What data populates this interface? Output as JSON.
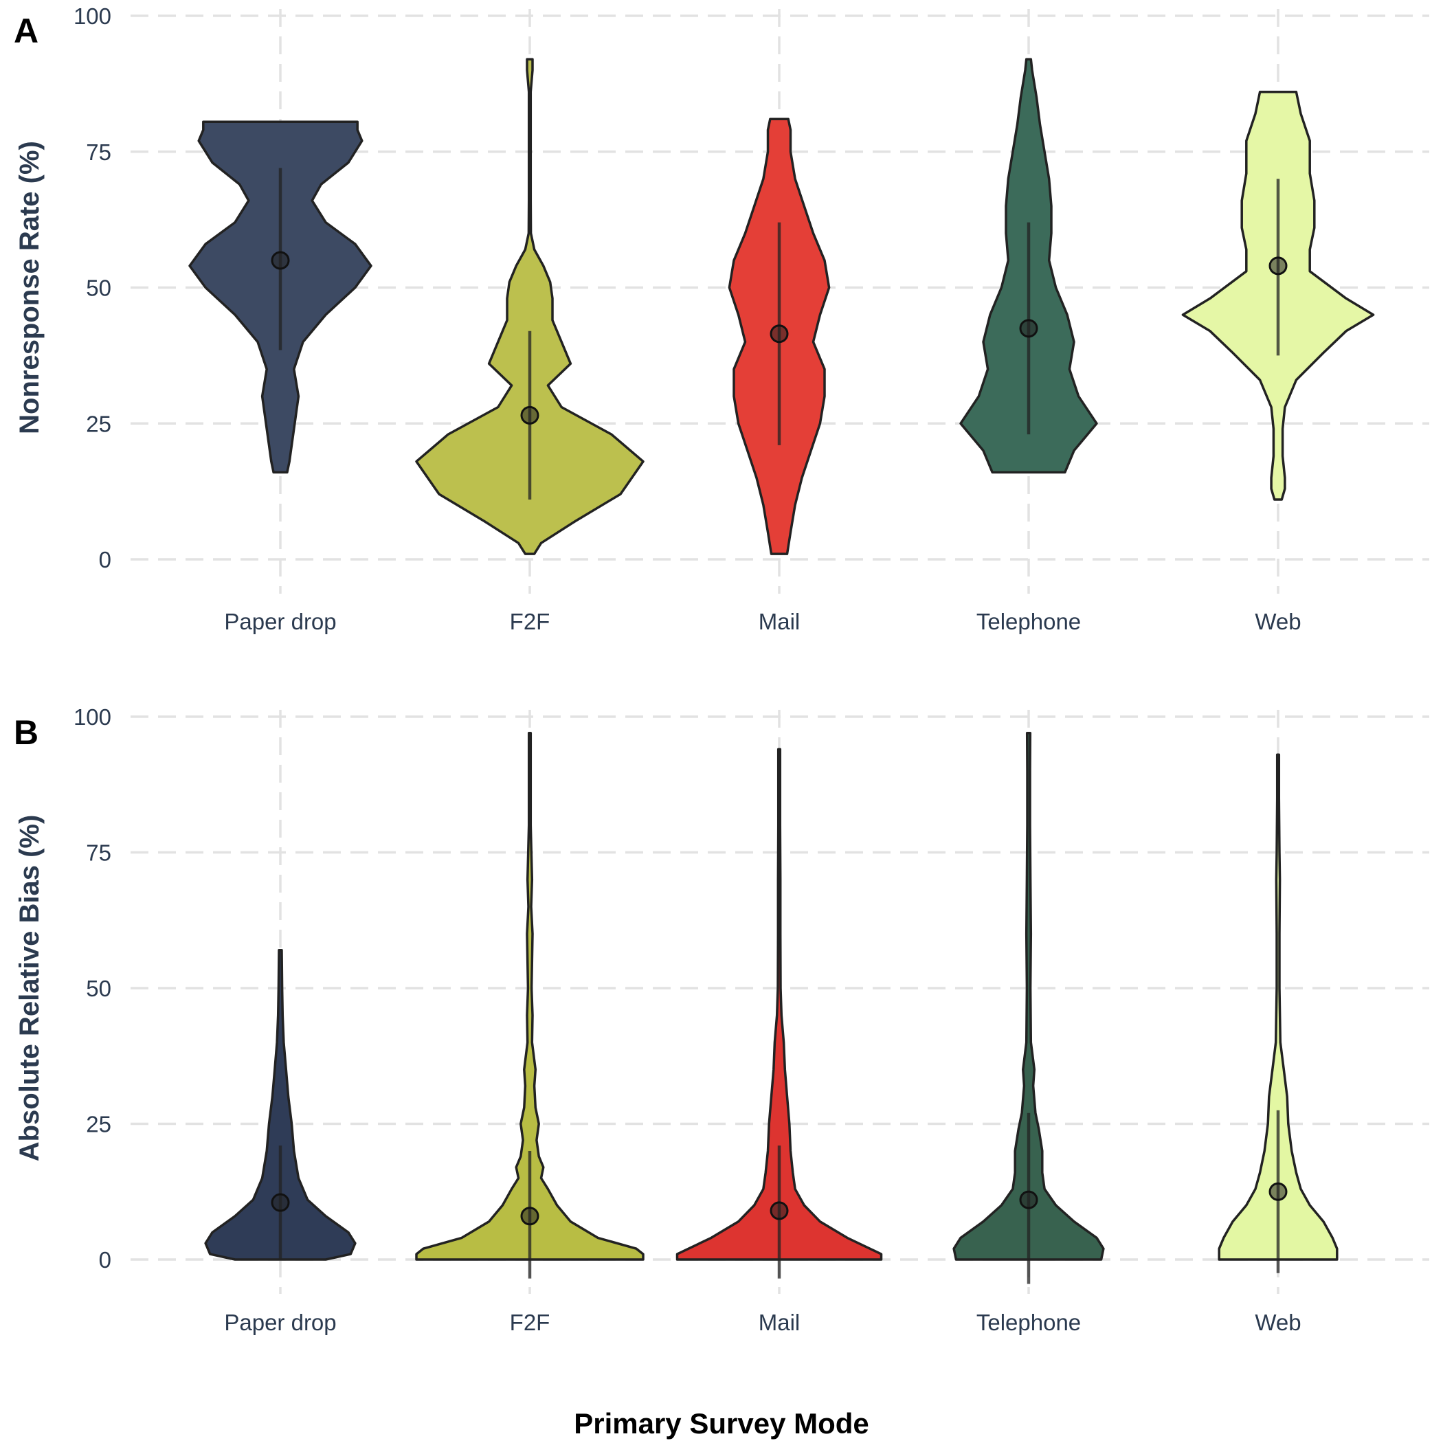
{
  "chart_data": [
    {
      "panel": "A",
      "type": "violin",
      "ylabel": "Nonresponse Rate (%)",
      "xlabel": "",
      "ylim": [
        0,
        100
      ],
      "yticks": [
        0,
        25,
        50,
        75,
        100
      ],
      "grid": true,
      "categories": [
        "Paper drop",
        "F2F",
        "Mail",
        "Telephone",
        "Web"
      ],
      "colors": [
        "#3d4a63",
        "#bcc04e",
        "#e43f37",
        "#3c6b5a",
        "#e5f7a6"
      ],
      "medians": [
        55,
        26.5,
        41.5,
        42.5,
        54
      ],
      "whiskers": [
        [
          38.5,
          72
        ],
        [
          11,
          42
        ],
        [
          21,
          62
        ],
        [
          23,
          62
        ],
        [
          37.5,
          70
        ]
      ],
      "density": [
        [
          [
            16,
            0.03
          ],
          [
            18,
            0.04
          ],
          [
            24,
            0.06
          ],
          [
            30,
            0.08
          ],
          [
            35,
            0.06
          ],
          [
            40,
            0.1
          ],
          [
            45,
            0.2
          ],
          [
            50,
            0.33
          ],
          [
            54,
            0.4
          ],
          [
            58,
            0.33
          ],
          [
            62,
            0.2
          ],
          [
            66,
            0.14
          ],
          [
            69,
            0.18
          ],
          [
            73,
            0.3
          ],
          [
            77,
            0.36
          ],
          [
            79,
            0.34
          ],
          [
            80.5,
            0.34
          ]
        ],
        [
          [
            1,
            0.02
          ],
          [
            3,
            0.05
          ],
          [
            7,
            0.2
          ],
          [
            12,
            0.4
          ],
          [
            18,
            0.5
          ],
          [
            23,
            0.36
          ],
          [
            28,
            0.14
          ],
          [
            32,
            0.08
          ],
          [
            36,
            0.18
          ],
          [
            40,
            0.14
          ],
          [
            44,
            0.1
          ],
          [
            48,
            0.1
          ],
          [
            51,
            0.09
          ],
          [
            54,
            0.06
          ],
          [
            57,
            0.02
          ],
          [
            60,
            0.005
          ],
          [
            66,
            0.004
          ],
          [
            78,
            0.004
          ],
          [
            86,
            0.004
          ],
          [
            90,
            0.012
          ],
          [
            92,
            0.012
          ]
        ],
        [
          [
            1,
            0.035
          ],
          [
            5,
            0.05
          ],
          [
            10,
            0.07
          ],
          [
            15,
            0.1
          ],
          [
            20,
            0.14
          ],
          [
            25,
            0.18
          ],
          [
            30,
            0.2
          ],
          [
            35,
            0.2
          ],
          [
            40,
            0.15
          ],
          [
            45,
            0.18
          ],
          [
            50,
            0.22
          ],
          [
            55,
            0.2
          ],
          [
            60,
            0.15
          ],
          [
            65,
            0.11
          ],
          [
            70,
            0.07
          ],
          [
            75,
            0.05
          ],
          [
            79,
            0.05
          ],
          [
            81,
            0.04
          ]
        ],
        [
          [
            16,
            0.16
          ],
          [
            20,
            0.2
          ],
          [
            25,
            0.3
          ],
          [
            30,
            0.22
          ],
          [
            35,
            0.18
          ],
          [
            40,
            0.2
          ],
          [
            45,
            0.17
          ],
          [
            50,
            0.12
          ],
          [
            55,
            0.09
          ],
          [
            60,
            0.1
          ],
          [
            65,
            0.1
          ],
          [
            70,
            0.09
          ],
          [
            75,
            0.07
          ],
          [
            80,
            0.05
          ],
          [
            85,
            0.035
          ],
          [
            90,
            0.015
          ],
          [
            92,
            0.01
          ]
        ],
        [
          [
            11,
            0.016
          ],
          [
            13,
            0.03
          ],
          [
            15,
            0.03
          ],
          [
            19,
            0.02
          ],
          [
            24,
            0.02
          ],
          [
            28,
            0.03
          ],
          [
            33,
            0.08
          ],
          [
            38,
            0.2
          ],
          [
            42,
            0.3
          ],
          [
            45,
            0.42
          ],
          [
            48,
            0.3
          ],
          [
            53,
            0.14
          ],
          [
            57,
            0.14
          ],
          [
            61,
            0.16
          ],
          [
            66,
            0.16
          ],
          [
            71,
            0.14
          ],
          [
            77,
            0.14
          ],
          [
            82,
            0.1
          ],
          [
            86,
            0.08
          ]
        ]
      ]
    },
    {
      "panel": "B",
      "type": "violin",
      "ylabel": "Absolute Relative Bias (%)",
      "xlabel": "Primary Survey Mode",
      "ylim": [
        0,
        100
      ],
      "yticks": [
        0,
        25,
        50,
        75,
        100
      ],
      "grid": true,
      "categories": [
        "Paper drop",
        "F2F",
        "Mail",
        "Telephone",
        "Web"
      ],
      "colors": [
        "#2f3c57",
        "#b8bd44",
        "#dd3430",
        "#38624f",
        "#e3f7a3"
      ],
      "medians": [
        10.5,
        8,
        9,
        11,
        12.5
      ],
      "whiskers": [
        [
          0,
          21
        ],
        [
          -3.5,
          20
        ],
        [
          -3.5,
          21
        ],
        [
          -4.5,
          27
        ],
        [
          -2.5,
          27.5
        ]
      ],
      "density": [
        [
          [
            0,
            0.2
          ],
          [
            1,
            0.31
          ],
          [
            3,
            0.33
          ],
          [
            5,
            0.3
          ],
          [
            8,
            0.2
          ],
          [
            11,
            0.12
          ],
          [
            15,
            0.08
          ],
          [
            20,
            0.06
          ],
          [
            25,
            0.05
          ],
          [
            30,
            0.035
          ],
          [
            35,
            0.025
          ],
          [
            40,
            0.015
          ],
          [
            45,
            0.01
          ],
          [
            50,
            0.008
          ],
          [
            57,
            0.006
          ]
        ],
        [
          [
            0,
            0.5
          ],
          [
            1,
            0.5
          ],
          [
            2,
            0.47
          ],
          [
            4,
            0.3
          ],
          [
            7,
            0.18
          ],
          [
            10,
            0.12
          ],
          [
            13,
            0.08
          ],
          [
            15,
            0.05
          ],
          [
            17,
            0.06
          ],
          [
            19,
            0.04
          ],
          [
            22,
            0.03
          ],
          [
            25,
            0.04
          ],
          [
            28,
            0.025
          ],
          [
            32,
            0.02
          ],
          [
            35,
            0.025
          ],
          [
            40,
            0.01
          ],
          [
            45,
            0.012
          ],
          [
            50,
            0.008
          ],
          [
            55,
            0.01
          ],
          [
            60,
            0.012
          ],
          [
            65,
            0.006
          ],
          [
            70,
            0.01
          ],
          [
            80,
            0.004
          ],
          [
            90,
            0.004
          ],
          [
            97,
            0.004
          ]
        ],
        [
          [
            0,
            0.45
          ],
          [
            1,
            0.45
          ],
          [
            2,
            0.4
          ],
          [
            4,
            0.3
          ],
          [
            7,
            0.18
          ],
          [
            10,
            0.11
          ],
          [
            13,
            0.07
          ],
          [
            16,
            0.06
          ],
          [
            20,
            0.05
          ],
          [
            25,
            0.045
          ],
          [
            30,
            0.035
          ],
          [
            35,
            0.025
          ],
          [
            40,
            0.02
          ],
          [
            45,
            0.01
          ],
          [
            50,
            0.006
          ],
          [
            60,
            0.005
          ],
          [
            70,
            0.005
          ],
          [
            80,
            0.004
          ],
          [
            94,
            0.004
          ]
        ],
        [
          [
            0,
            0.32
          ],
          [
            2,
            0.33
          ],
          [
            4,
            0.3
          ],
          [
            7,
            0.2
          ],
          [
            10,
            0.12
          ],
          [
            13,
            0.07
          ],
          [
            16,
            0.06
          ],
          [
            20,
            0.06
          ],
          [
            24,
            0.045
          ],
          [
            27,
            0.03
          ],
          [
            32,
            0.02
          ],
          [
            35,
            0.025
          ],
          [
            40,
            0.01
          ],
          [
            50,
            0.008
          ],
          [
            60,
            0.01
          ],
          [
            70,
            0.008
          ],
          [
            80,
            0.006
          ],
          [
            90,
            0.006
          ],
          [
            97,
            0.007
          ]
        ],
        [
          [
            0,
            0.26
          ],
          [
            2,
            0.26
          ],
          [
            4,
            0.24
          ],
          [
            7,
            0.2
          ],
          [
            10,
            0.14
          ],
          [
            13,
            0.1
          ],
          [
            16,
            0.08
          ],
          [
            20,
            0.06
          ],
          [
            25,
            0.045
          ],
          [
            30,
            0.04
          ],
          [
            35,
            0.025
          ],
          [
            40,
            0.01
          ],
          [
            50,
            0.006
          ],
          [
            60,
            0.006
          ],
          [
            70,
            0.008
          ],
          [
            75,
            0.006
          ],
          [
            85,
            0.004
          ],
          [
            93,
            0.004
          ]
        ]
      ]
    }
  ],
  "panel_letters": [
    "A",
    "B"
  ],
  "xlabel_text": "Primary Survey Mode"
}
